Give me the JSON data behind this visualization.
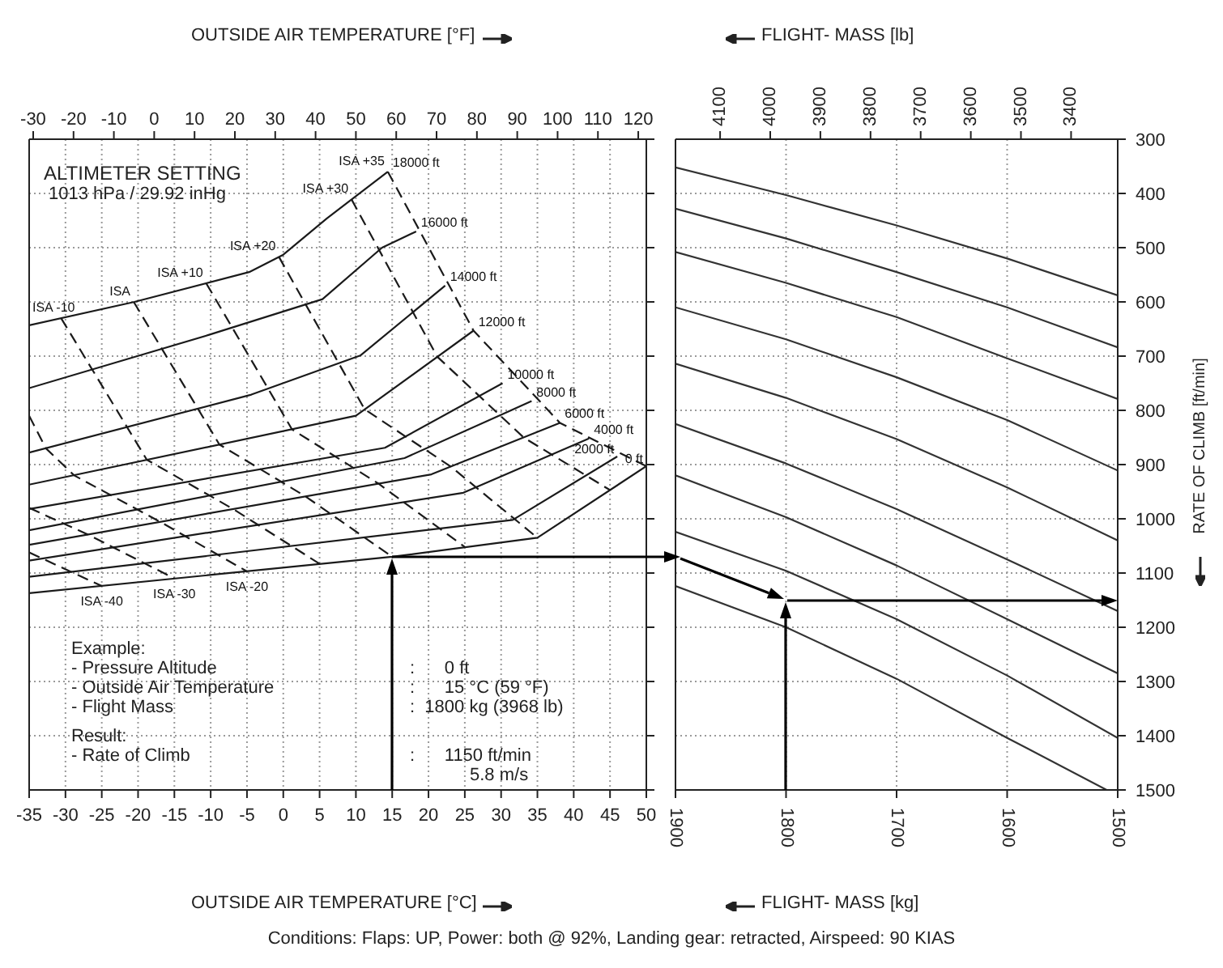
{
  "chart_data": [
    {
      "type": "line",
      "xlabel": "OUTSIDE AIR TEMPERATURE [°C]",
      "x2label": "OUTSIDE AIR TEMPERATURE [°F]",
      "xlim": [
        -35,
        50
      ],
      "xticks": [
        -35,
        -30,
        -25,
        -20,
        -15,
        -10,
        -5,
        0,
        5,
        10,
        15,
        20,
        25,
        30,
        35,
        40,
        45,
        50
      ],
      "x2lim": [
        -31,
        122
      ],
      "x2ticks": [
        -30,
        -20,
        -10,
        0,
        10,
        20,
        30,
        40,
        50,
        60,
        70,
        80,
        90,
        100,
        110,
        120
      ],
      "ylim": [
        1500,
        300
      ],
      "yticks": [
        300,
        400,
        500,
        600,
        700,
        800,
        900,
        1000,
        1100,
        1200,
        1300,
        1400,
        1500
      ],
      "tick_labels": "x",
      "grid": true,
      "line_style": "solid",
      "annotations": [
        "ALTIMETER SETTING",
        "1013 hPa / 29.92 inHg",
        "Example:",
        "- Pressure Altitude",
        "- Outside Air Temperature",
        "- Flight Mass",
        "Result:",
        "- Rate of Climb",
        ":      0 ft",
        ":      15 °C (59 °F)",
        ":  1800 kg (3968 lb)",
        ":      1150 ft/min",
        "5.8 m/s"
      ],
      "series": [
        {
          "name": "18000 ft",
          "color": "#1a1a1a",
          "x": [
            -35,
            -20.5,
            -4.7,
            0,
            6,
            14.4
          ],
          "values": [
            643,
            600,
            545,
            513,
            446,
            360
          ]
        },
        {
          "name": "16000 ft",
          "color": "#1a1a1a",
          "x": [
            -35,
            -10.3,
            5.4,
            13.6,
            18.3
          ],
          "values": [
            759,
            661,
            595,
            500,
            470
          ]
        },
        {
          "name": "14000 ft",
          "color": "#1a1a1a",
          "x": [
            -35,
            -4.4,
            10.6,
            22.3
          ],
          "values": [
            878,
            771,
            699,
            570
          ]
        },
        {
          "name": "12000 ft",
          "color": "#1a1a1a",
          "x": [
            -35,
            10,
            26.2
          ],
          "values": [
            937,
            810,
            653
          ]
        },
        {
          "name": "10000 ft",
          "color": "#1a1a1a",
          "x": [
            -35,
            14,
            30.2
          ],
          "values": [
            982,
            869,
            750
          ]
        },
        {
          "name": "8000 ft",
          "color": "#1a1a1a",
          "x": [
            -35,
            16.7,
            34.2
          ],
          "values": [
            1021,
            888,
            783
          ]
        },
        {
          "name": "6000 ft",
          "color": "#1a1a1a",
          "x": [
            -35,
            20.4,
            38.1
          ],
          "values": [
            1048,
            918,
            823
          ]
        },
        {
          "name": "4000 ft",
          "color": "#1a1a1a",
          "x": [
            -35,
            24.8,
            42.1
          ],
          "values": [
            1077,
            952,
            852
          ]
        },
        {
          "name": "2000 ft",
          "color": "#1a1a1a",
          "x": [
            -35,
            31.6,
            46
          ],
          "values": [
            1107,
            1002,
            885
          ]
        },
        {
          "name": "0 ft",
          "color": "#1a1a1a",
          "x": [
            -35,
            15,
            35,
            50
          ],
          "values": [
            1137,
            1070,
            1035,
            903
          ]
        },
        {
          "name": "ISA -40",
          "color": "#1a1a1a",
          "line_style": "dashed",
          "x": [
            -35,
            -25
          ],
          "values": [
            1062,
            1124
          ]
        },
        {
          "name": "ISA -30",
          "color": "#1a1a1a",
          "line_style": "dashed",
          "x": [
            -35,
            -26.9,
            -15
          ],
          "values": [
            980,
            1029,
            1110
          ]
        },
        {
          "name": "ISA -20",
          "color": "#1a1a1a",
          "line_style": "dashed",
          "x": [
            -35,
            -32.7,
            -28.8,
            -16.9,
            -5
          ],
          "values": [
            810,
            870,
            920,
            1006,
            1097
          ]
        },
        {
          "name": "ISA -10",
          "color": "#1a1a1a",
          "line_style": "dashed",
          "x": [
            -30.6,
            -18.8,
            -6.9,
            5
          ],
          "values": [
            630,
            891,
            982,
            1083
          ]
        },
        {
          "name": "ISA",
          "color": "#1a1a1a",
          "line_style": "dashed",
          "x": [
            -20.6,
            -8.8,
            3.1,
            15
          ],
          "values": [
            600,
            863,
            959,
            1070
          ]
        },
        {
          "name": "ISA +10",
          "color": "#1a1a1a",
          "line_style": "dashed",
          "x": [
            -10.6,
            1.2,
            13.1,
            25
          ],
          "values": [
            566,
            835,
            935,
            1052
          ]
        },
        {
          "name": "ISA +20",
          "color": "#1a1a1a",
          "line_style": "dashed",
          "x": [
            -0.6,
            11.2,
            23.1,
            35
          ],
          "values": [
            517,
            798,
            904,
            1035
          ]
        },
        {
          "name": "ISA +30",
          "color": "#1a1a1a",
          "line_style": "dashed",
          "x": [
            9.4,
            21.2,
            33.1,
            45
          ],
          "values": [
            411,
            701,
            850,
            947
          ]
        },
        {
          "name": "ISA +35",
          "color": "#1a1a1a",
          "line_style": "dashed",
          "x": [
            14.4,
            26.2,
            38.1,
            50
          ],
          "values": [
            360,
            653,
            823,
            903
          ]
        }
      ]
    },
    {
      "type": "line",
      "xlabel": "FLIGHT- MASS [kg]",
      "x2label": "FLIGHT- MASS [lb]",
      "ylabel": "RATE OF CLIMB [ft/min]",
      "xlim": [
        1900,
        1500
      ],
      "xticks": [
        1900,
        1800,
        1700,
        1600,
        1500
      ],
      "x2lim": [
        4189,
        3307
      ],
      "x2ticks": [
        4100,
        4000,
        3900,
        3800,
        3700,
        3600,
        3500,
        3400
      ],
      "ylim": [
        1500,
        300
      ],
      "yticks": [
        300,
        400,
        500,
        600,
        700,
        800,
        900,
        1000,
        1100,
        1200,
        1300,
        1400,
        1500
      ],
      "grid": true,
      "line_style": "solid",
      "x": [
        1900,
        1800,
        1700,
        1600,
        1500
      ],
      "annotations": [
        "Conditions: Flaps: UP, Power: both @ 92%, Landing gear: retracted, Airspeed: 90 KIAS"
      ],
      "series": [
        {
          "color": "#333333",
          "values": [
            352,
            403,
            459,
            520,
            588
          ]
        },
        {
          "color": "#333333",
          "values": [
            428,
            483,
            545,
            610,
            684
          ]
        },
        {
          "color": "#333333",
          "values": [
            508,
            565,
            628,
            704,
            779
          ]
        },
        {
          "color": "#333333",
          "values": [
            610,
            669,
            739,
            818,
            911
          ]
        },
        {
          "color": "#333333",
          "values": [
            714,
            777,
            853,
            942,
            1040
          ]
        },
        {
          "color": "#333333",
          "values": [
            825,
            898,
            982,
            1075,
            1170
          ]
        },
        {
          "color": "#333333",
          "values": [
            920,
            997,
            1086,
            1185,
            1285
          ]
        },
        {
          "color": "#333333",
          "values": [
            1024,
            1096,
            1185,
            1289,
            1404
          ]
        },
        {
          "color": "#333333",
          "x": [
            1900,
            1800,
            1700,
            1600,
            1510
          ],
          "values": [
            1124,
            1200,
            1295,
            1404,
            1500
          ]
        }
      ]
    }
  ]
}
